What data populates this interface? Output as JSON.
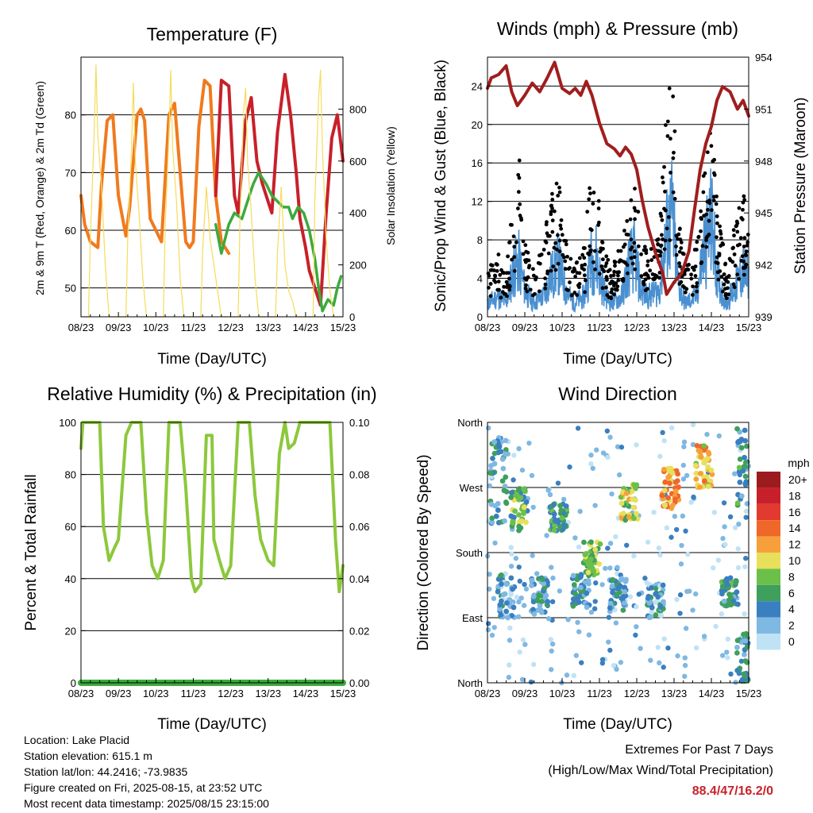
{
  "time_ticks": [
    "08/23",
    "09/23",
    "10/23",
    "11/23",
    "12/23",
    "13/23",
    "14/23",
    "15/23"
  ],
  "colors": {
    "temp_red": "#c8202a",
    "temp_orange": "#f07a1e",
    "dewpoint": "#3caa3c",
    "insolation": "#f5dc5a",
    "wind_blue": "#4a90d0",
    "gust_black": "#000000",
    "pressure": "#a01e1e",
    "rh": "#8cc83c",
    "precip": "#3caa3c"
  },
  "chart_data": [
    {
      "id": "temperature",
      "type": "line",
      "title": "Temperature (F)",
      "xlabel": "Time (Day/UTC)",
      "ylabel": "2m & 9m T (Red, Orange) & 2m Td (Green)",
      "y2label": "Solar Insolation (Yellow)",
      "xlim": [
        0,
        7
      ],
      "ylim": [
        45,
        90
      ],
      "y2lim": [
        0,
        1000
      ],
      "yticks": [
        50,
        60,
        70,
        80
      ],
      "y2ticks": [
        0,
        200,
        400,
        600,
        800
      ],
      "grid": true,
      "series": [
        {
          "axis": "left",
          "color": "temp_orange",
          "x": [
            0,
            0.1,
            0.25,
            0.45,
            0.55,
            0.7,
            0.85,
            1.0,
            1.2,
            1.3,
            1.5,
            1.6,
            1.7,
            1.85,
            2.0,
            2.15,
            2.35,
            2.5,
            2.65,
            2.8,
            2.9,
            3.0,
            3.15,
            3.3,
            3.45,
            3.6,
            3.75,
            3.95
          ],
          "y": [
            66,
            61,
            58,
            57,
            68,
            79,
            80,
            66,
            59,
            64,
            80,
            81,
            79,
            62,
            60,
            58,
            80,
            82,
            70,
            58,
            57,
            58,
            78,
            86,
            85,
            66,
            58,
            56
          ]
        },
        {
          "axis": "left",
          "color": "temp_red",
          "x": [
            3.6,
            3.75,
            3.95,
            4.1,
            4.2,
            4.4,
            4.55,
            4.7,
            4.85,
            5.0,
            5.1,
            5.25,
            5.45,
            5.6,
            5.75,
            5.85,
            6.0,
            6.1,
            6.25,
            6.4,
            6.55,
            6.7,
            6.85,
            7.0
          ],
          "y": [
            66,
            86,
            85,
            66,
            63,
            79,
            83,
            72,
            68,
            65,
            63,
            77,
            87,
            80,
            70,
            62,
            57,
            53,
            50,
            47,
            63,
            76,
            80,
            72
          ]
        },
        {
          "axis": "left",
          "color": "dewpoint",
          "x": [
            3.6,
            3.75,
            3.95,
            4.1,
            4.3,
            4.5,
            4.6,
            4.75,
            4.95,
            5.1,
            5.25,
            5.4,
            5.55,
            5.65,
            5.8,
            5.95,
            6.1,
            6.25,
            6.35,
            6.45,
            6.6,
            6.75,
            6.85,
            6.95
          ],
          "y": [
            61,
            56,
            61,
            63,
            62,
            66,
            68,
            70,
            68,
            66,
            65,
            64,
            64,
            62,
            64,
            63,
            60,
            55,
            50,
            46,
            48,
            47,
            50,
            52
          ]
        },
        {
          "axis": "right",
          "color": "insolation",
          "x": [
            0,
            0.2,
            0.25,
            0.35,
            0.4,
            0.45,
            0.55,
            0.65,
            0.75,
            1.0,
            1.2,
            1.25,
            1.35,
            1.4,
            1.45,
            1.55,
            1.65,
            1.75,
            2.0,
            2.2,
            2.25,
            2.35,
            2.4,
            2.45,
            2.55,
            2.65,
            2.75,
            3.0,
            3.2,
            3.25,
            3.35,
            3.4,
            3.45,
            3.55,
            3.65,
            3.75,
            4.0,
            4.2,
            4.25,
            4.35,
            4.4,
            4.45,
            4.55,
            4.65,
            4.75,
            5.0,
            5.2,
            5.25,
            5.35,
            5.4,
            5.45,
            5.55,
            5.65,
            5.75,
            6.0,
            6.2,
            6.25,
            6.35,
            6.4,
            6.45,
            6.55,
            6.65,
            6.75,
            7.0
          ],
          "y": [
            0,
            0,
            300,
            700,
            970,
            700,
            500,
            200,
            0,
            0,
            0,
            300,
            650,
            900,
            600,
            400,
            150,
            0,
            0,
            0,
            350,
            700,
            950,
            650,
            450,
            150,
            0,
            0,
            0,
            250,
            500,
            400,
            300,
            200,
            100,
            0,
            0,
            0,
            400,
            800,
            880,
            600,
            400,
            150,
            0,
            0,
            0,
            250,
            500,
            350,
            200,
            100,
            60,
            0,
            0,
            0,
            450,
            850,
            950,
            650,
            300,
            100,
            0,
            0
          ]
        }
      ]
    },
    {
      "id": "winds",
      "type": "line",
      "title": "Winds (mph) & Pressure (mb)",
      "xlabel": "Time (Day/UTC)",
      "ylabel": "Sonic/Prop Wind & Gust (Blue, Black)",
      "y2label": "Station Pressure (Maroon)",
      "xlim": [
        0,
        7
      ],
      "ylim": [
        0,
        27
      ],
      "y2lim": [
        939,
        954
      ],
      "yticks": [
        0,
        4,
        8,
        12,
        16,
        20,
        24
      ],
      "y2ticks": [
        939,
        942,
        945,
        948,
        951,
        954
      ],
      "grid": true,
      "series": [
        {
          "axis": "left",
          "name_hidden": "wind",
          "color": "wind_blue",
          "x": [
            0,
            0.3,
            0.5,
            0.7,
            0.85,
            1.0,
            1.2,
            1.5,
            1.7,
            1.9,
            2.1,
            2.3,
            2.6,
            2.75,
            2.9,
            3.1,
            3.3,
            3.6,
            3.8,
            3.95,
            4.1,
            4.3,
            4.6,
            4.8,
            4.95,
            5.1,
            5.3,
            5.6,
            5.8,
            6.0,
            6.2,
            6.4,
            6.7,
            6.85,
            7.0
          ],
          "y": [
            2,
            3,
            2,
            7,
            8,
            4,
            2,
            3,
            6,
            8,
            4,
            2,
            3,
            8,
            9,
            4,
            2,
            3,
            8,
            9,
            4,
            3,
            4,
            12,
            15,
            5,
            2,
            3,
            10,
            14,
            5,
            2,
            5,
            7,
            5
          ]
        },
        {
          "axis": "left",
          "name_hidden": "gust",
          "color": "gust_black",
          "x": [
            0,
            0.3,
            0.5,
            0.7,
            0.85,
            1.0,
            1.2,
            1.5,
            1.7,
            1.9,
            2.1,
            2.3,
            2.6,
            2.75,
            2.9,
            3.1,
            3.3,
            3.6,
            3.8,
            3.95,
            4.1,
            4.3,
            4.6,
            4.8,
            4.95,
            5.1,
            5.3,
            5.6,
            5.8,
            6.0,
            6.2,
            6.4,
            6.7,
            6.85,
            7.0
          ],
          "y": [
            5,
            6,
            4,
            12,
            16,
            8,
            5,
            7,
            12,
            13,
            8,
            5,
            7,
            13,
            14,
            8,
            5,
            7,
            12,
            13,
            8,
            6,
            8,
            20,
            24,
            10,
            5,
            7,
            15,
            18,
            10,
            5,
            10,
            12,
            9
          ]
        },
        {
          "axis": "right",
          "color": "pressure",
          "x": [
            0,
            0.1,
            0.3,
            0.5,
            0.65,
            0.8,
            1.0,
            1.2,
            1.4,
            1.6,
            1.8,
            2.0,
            2.2,
            2.35,
            2.5,
            2.65,
            2.8,
            3.0,
            3.2,
            3.4,
            3.55,
            3.7,
            3.85,
            4.0,
            4.15,
            4.3,
            4.5,
            4.7,
            4.8,
            5.0,
            5.2,
            5.4,
            5.55,
            5.7,
            5.85,
            6.0,
            6.15,
            6.3,
            6.5,
            6.7,
            6.85,
            7.0
          ],
          "y": [
            952.2,
            952.8,
            953.0,
            953.5,
            952.0,
            951.2,
            951.8,
            952.5,
            952.0,
            952.8,
            953.7,
            952.2,
            951.9,
            952.2,
            951.8,
            952.6,
            951.8,
            950.2,
            949.0,
            948.7,
            948.3,
            948.8,
            948.4,
            947.5,
            945.7,
            944.2,
            942.7,
            941.5,
            940.3,
            941.0,
            941.5,
            942.8,
            945.2,
            947.5,
            949.0,
            950.0,
            951.5,
            952.3,
            952.0,
            951.0,
            951.5,
            950.6
          ]
        }
      ]
    },
    {
      "id": "humidity",
      "type": "line",
      "title": "Relative Humidity (%) & Precipitation (in)",
      "xlabel": "Time (Day/UTC)",
      "ylabel": "Percent & Total Rainfall",
      "xlim": [
        0,
        7
      ],
      "ylim": [
        0,
        100
      ],
      "y2lim": [
        0,
        0.1
      ],
      "yticks": [
        0,
        20,
        40,
        60,
        80,
        100
      ],
      "y2ticks": [
        "0.00",
        "0.02",
        "0.04",
        "0.06",
        "0.08",
        "0.10"
      ],
      "grid": true,
      "series": [
        {
          "axis": "left",
          "color": "rh",
          "x": [
            0,
            0.05,
            0.1,
            0.3,
            0.5,
            0.6,
            0.75,
            0.9,
            1.0,
            1.2,
            1.35,
            1.5,
            1.6,
            1.75,
            1.9,
            2.05,
            2.2,
            2.35,
            2.5,
            2.65,
            2.8,
            2.95,
            3.05,
            3.2,
            3.35,
            3.5,
            3.55,
            3.7,
            3.85,
            4.0,
            4.2,
            4.35,
            4.5,
            4.65,
            4.8,
            5.0,
            5.15,
            5.3,
            5.45,
            5.55,
            5.7,
            5.85,
            6.0,
            6.2,
            6.35,
            6.5,
            6.65,
            6.8,
            6.9,
            7.0
          ],
          "y": [
            90,
            100,
            100,
            100,
            100,
            60,
            47,
            52,
            55,
            95,
            100,
            100,
            100,
            65,
            45,
            40,
            47,
            100,
            100,
            100,
            75,
            40,
            35,
            38,
            95,
            95,
            55,
            47,
            40,
            45,
            100,
            100,
            100,
            72,
            55,
            47,
            45,
            88,
            100,
            90,
            92,
            100,
            100,
            100,
            100,
            100,
            100,
            55,
            35,
            45
          ]
        },
        {
          "axis": "left",
          "color": "precip",
          "x": [
            0,
            7
          ],
          "y": [
            0,
            0
          ]
        }
      ]
    },
    {
      "id": "wind_direction",
      "type": "scatter",
      "title": "Wind Direction",
      "xlabel": "Time (Day/UTC)",
      "ylabel": "Direction (Colored By Speed)",
      "xlim": [
        0,
        7
      ],
      "ylim": [
        0,
        360
      ],
      "ytick_labels": [
        "North",
        "East",
        "South",
        "West",
        "North"
      ],
      "grid": true,
      "legend": {
        "title": "mph",
        "labels": [
          "20+",
          "18",
          "16",
          "14",
          "12",
          "10",
          "8",
          "6",
          "4",
          "2",
          "0"
        ],
        "colors": [
          "#9b1b1e",
          "#c8202a",
          "#e23a2e",
          "#f0672a",
          "#f7a03b",
          "#e8e05a",
          "#6cc04a",
          "#3f9f5c",
          "#3a7fc0",
          "#7fb8e2",
          "#bfe2f5"
        ],
        "placement": "right"
      },
      "clusters": [
        {
          "x": 0.3,
          "dir": 280,
          "spread": 60,
          "speed": 4
        },
        {
          "x": 0.85,
          "dir": 240,
          "spread": 30,
          "speed": 7
        },
        {
          "x": 1.9,
          "dir": 230,
          "spread": 20,
          "speed": 6
        },
        {
          "x": 2.8,
          "dir": 170,
          "spread": 25,
          "speed": 8
        },
        {
          "x": 3.8,
          "dir": 250,
          "spread": 25,
          "speed": 9
        },
        {
          "x": 4.9,
          "dir": 270,
          "spread": 30,
          "speed": 12
        },
        {
          "x": 5.8,
          "dir": 300,
          "spread": 30,
          "speed": 11
        },
        {
          "x": 0.5,
          "dir": 120,
          "spread": 30,
          "speed": 3
        },
        {
          "x": 1.4,
          "dir": 120,
          "spread": 25,
          "speed": 4
        },
        {
          "x": 2.5,
          "dir": 125,
          "spread": 25,
          "speed": 4
        },
        {
          "x": 3.5,
          "dir": 120,
          "spread": 25,
          "speed": 4
        },
        {
          "x": 4.5,
          "dir": 115,
          "spread": 25,
          "speed": 3
        },
        {
          "x": 6.5,
          "dir": 125,
          "spread": 20,
          "speed": 5
        },
        {
          "x": 6.9,
          "dir": 30,
          "spread": 40,
          "speed": 4
        },
        {
          "x": 6.9,
          "dir": 300,
          "spread": 60,
          "speed": 5
        }
      ]
    }
  ],
  "footer": {
    "location": "Location: Lake Placid",
    "elevation": "Station elevation: 615.1 m",
    "latlon": "Station lat/lon: 44.2416; -73.9835",
    "created": "Figure created on Fri, 2025-08-15, at 23:52 UTC",
    "recent": "Most recent data timestamp: 2025/08/15 23:15:00"
  },
  "extremes": {
    "title": "Extremes For Past 7 Days",
    "subtitle": "(High/Low/Max Wind/Total Precipitation)",
    "values": "88.4/47/16.2/0"
  }
}
